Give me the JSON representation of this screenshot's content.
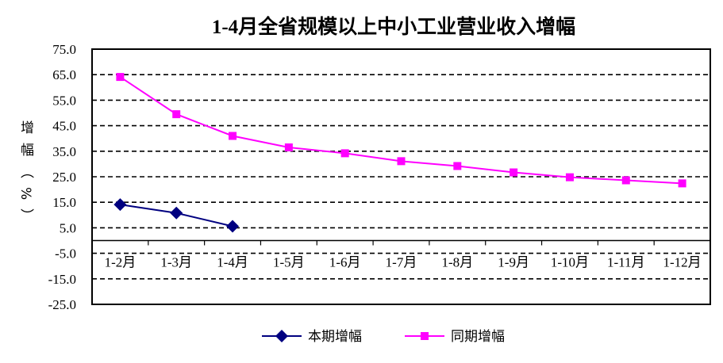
{
  "chart_data": {
    "type": "line",
    "title": "1-4月全省规模以上中小工业营业收入增幅",
    "ylabel": "增幅（%）",
    "xlabel": "",
    "ylim": [
      -25,
      75
    ],
    "yticks": [
      "75.0",
      "65.0",
      "55.0",
      "45.0",
      "35.0",
      "25.0",
      "15.0",
      "5.0",
      "-5.0",
      "-15.0",
      "-25.0"
    ],
    "ytick_values": [
      75,
      65,
      55,
      45,
      35,
      25,
      15,
      5,
      -5,
      -15,
      -25
    ],
    "categories": [
      "1-2月",
      "1-3月",
      "1-4月",
      "1-5月",
      "1-6月",
      "1-7月",
      "1-8月",
      "1-9月",
      "1-10月",
      "1-11月",
      "1-12月"
    ],
    "grid": "horizontal dashed",
    "legend_position": "bottom",
    "series": [
      {
        "name": "本期增幅",
        "color": "#000080",
        "marker": "diamond",
        "values": [
          14.1,
          10.8,
          5.6,
          null,
          null,
          null,
          null,
          null,
          null,
          null,
          null
        ]
      },
      {
        "name": "同期增幅",
        "color": "#FF00FF",
        "marker": "square",
        "values": [
          64.1,
          49.5,
          41.0,
          36.5,
          34.2,
          31.1,
          29.2,
          26.7,
          24.8,
          23.6,
          22.4
        ]
      }
    ]
  }
}
